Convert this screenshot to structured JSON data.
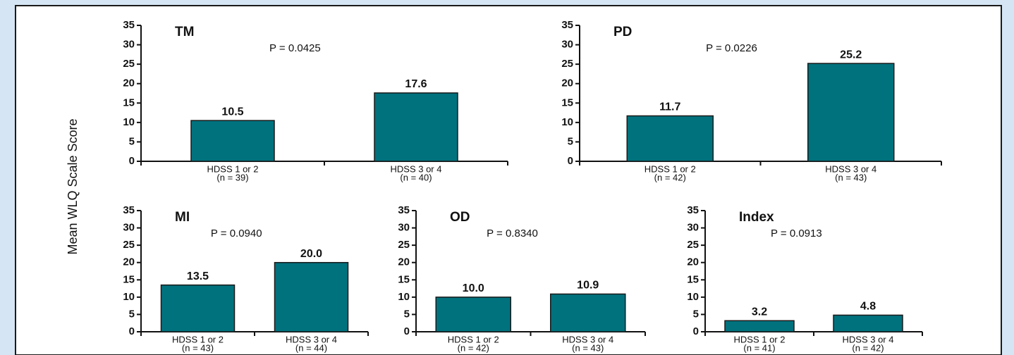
{
  "y_axis_label": "Mean WLQ Scale Score",
  "chart_data": [
    {
      "type": "bar",
      "title": "TM",
      "annotation": "P = 0.0425",
      "categories": [
        "HDSS 1 or 2",
        "HDSS 3 or 4"
      ],
      "n_labels": [
        "(n = 39)",
        "(n = 40)"
      ],
      "values": [
        10.5,
        17.6
      ],
      "color": "#00727e",
      "ylim": [
        0,
        35
      ],
      "yticks": [
        0,
        5,
        10,
        15,
        20,
        25,
        30,
        35
      ]
    },
    {
      "type": "bar",
      "title": "PD",
      "annotation": "P = 0.0226",
      "categories": [
        "HDSS 1 or 2",
        "HDSS 3 or 4"
      ],
      "n_labels": [
        "(n = 42)",
        "(n = 43)"
      ],
      "values": [
        11.7,
        25.2
      ],
      "color": "#00727e",
      "ylim": [
        0,
        35
      ],
      "yticks": [
        0,
        5,
        10,
        15,
        20,
        25,
        30,
        35
      ]
    },
    {
      "type": "bar",
      "title": "MI",
      "annotation": "P = 0.0940",
      "categories": [
        "HDSS 1 or 2",
        "HDSS 3 or 4"
      ],
      "n_labels": [
        "(n = 43)",
        "(n = 44)"
      ],
      "values": [
        13.5,
        20
      ],
      "value_labels": [
        "13.5",
        "20.0"
      ],
      "color": "#00727e",
      "ylim": [
        0,
        35
      ],
      "yticks": [
        0,
        5,
        10,
        15,
        20,
        25,
        30,
        35
      ]
    },
    {
      "type": "bar",
      "title": "OD",
      "annotation": "P = 0.8340",
      "categories": [
        "HDSS 1 or 2",
        "HDSS 3 or 4"
      ],
      "n_labels": [
        "(n = 42)",
        "(n = 43)"
      ],
      "values": [
        10,
        10.9
      ],
      "value_labels": [
        "10.0",
        "10.9"
      ],
      "color": "#00727e",
      "ylim": [
        0,
        35
      ],
      "yticks": [
        0,
        5,
        10,
        15,
        20,
        25,
        30,
        35
      ]
    },
    {
      "type": "bar",
      "title": "Index",
      "annotation": "P = 0.0913",
      "categories": [
        "HDSS 1 or 2",
        "HDSS 3 or 4"
      ],
      "n_labels": [
        "(n = 41)",
        "(n = 42)"
      ],
      "values": [
        3.2,
        4.8
      ],
      "color": "#00727e",
      "ylim": [
        0,
        35
      ],
      "yticks": [
        0,
        5,
        10,
        15,
        20,
        25,
        30,
        35
      ]
    }
  ]
}
